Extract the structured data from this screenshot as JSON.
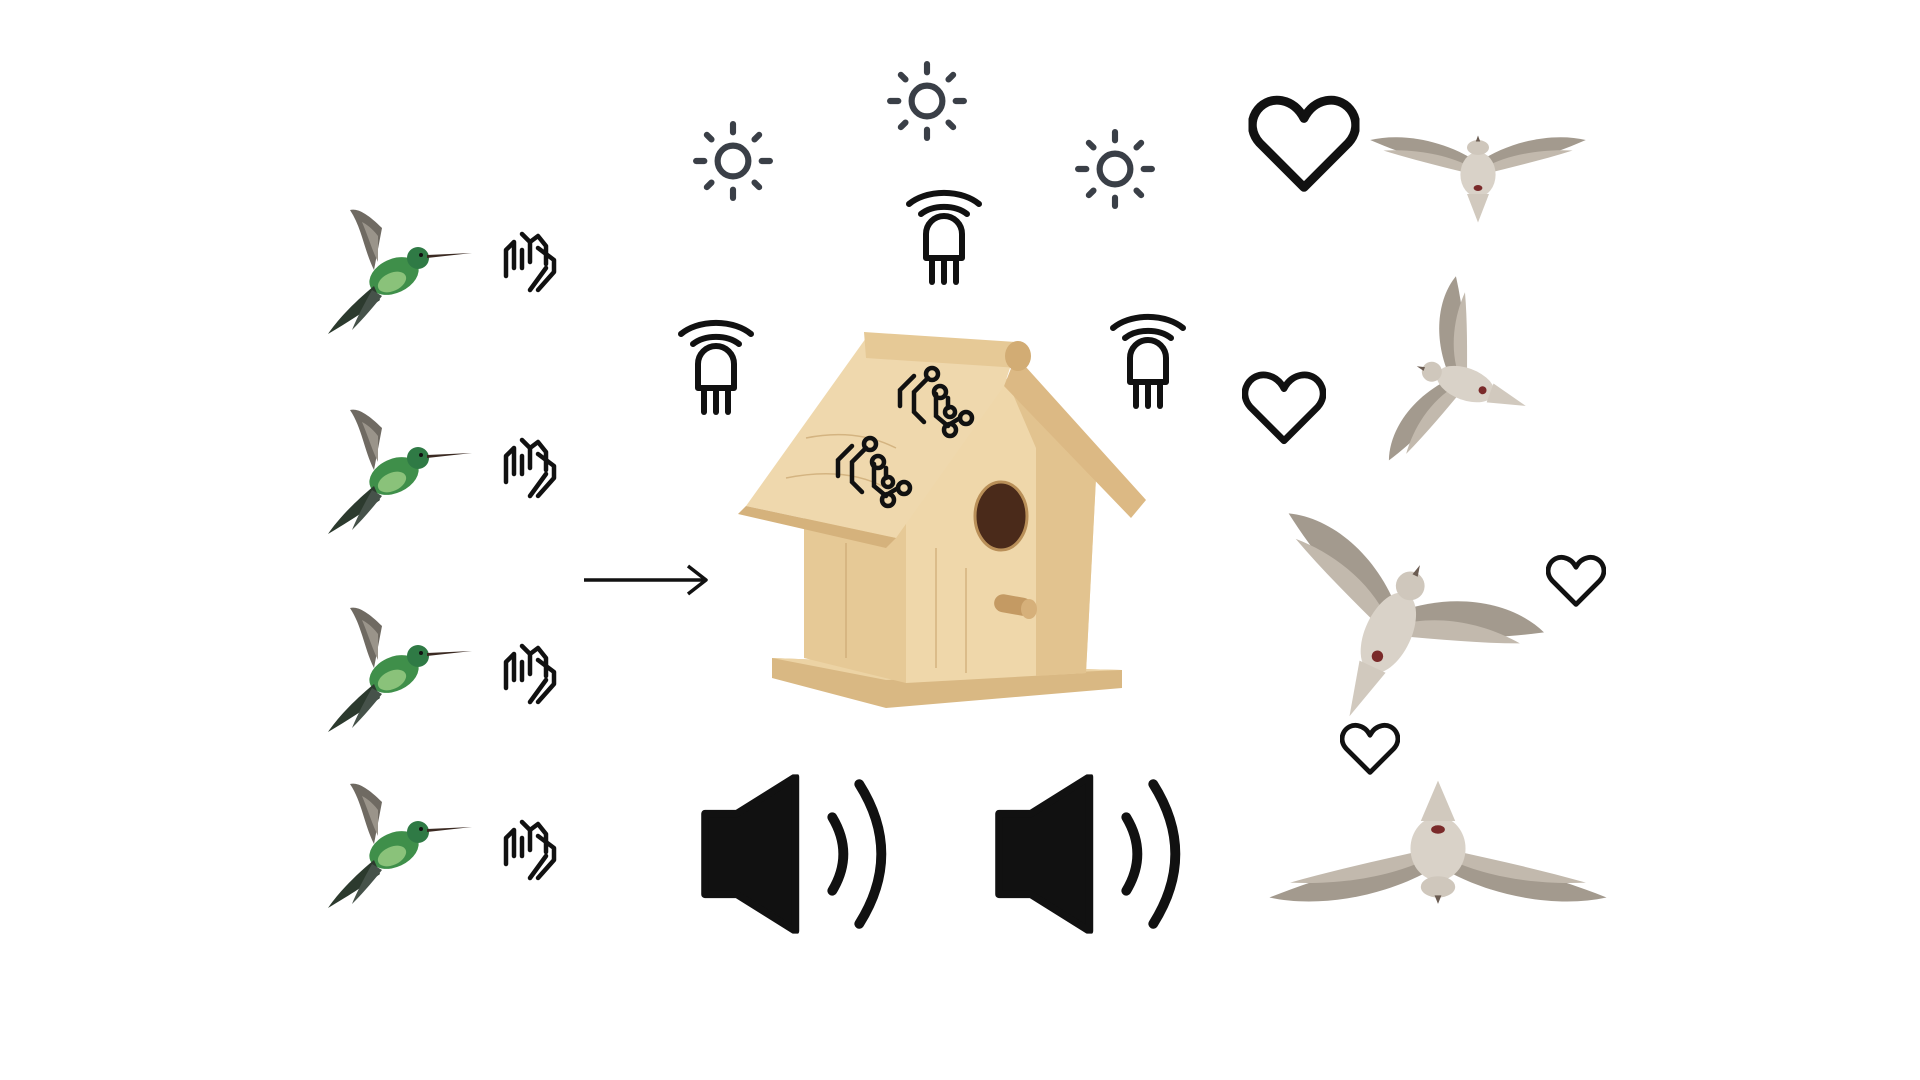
{
  "colors": {
    "background": "#ffffff",
    "icon_black": "#111111",
    "sun_gray": "#3a3f47",
    "wood_light": "#ecd3a4",
    "wood_mid": "#dcb984",
    "wood_dark": "#b98f58",
    "hummingbird_green": "#3f8f4a",
    "dove_gray": "#9a9186"
  },
  "left_column": {
    "hummingbird_count": 4,
    "hummingbird_icon": "hummingbird-icon",
    "clap_icon": "clapping-hands-icon"
  },
  "connector": {
    "icon": "arrow-right-icon"
  },
  "center": {
    "main_icon": "birdhouse-icon",
    "roof_icon": "circuit-icon",
    "sun_icon": "sun-icon",
    "sensor_icon": "wireless-sensor-icon",
    "speaker_icon": "speaker-volume-icon"
  },
  "right_column": {
    "bird_icon": "flying-dove-icon",
    "heart_icon": "heart-outline-icon",
    "bird_count": 4,
    "heart_count": 4
  }
}
